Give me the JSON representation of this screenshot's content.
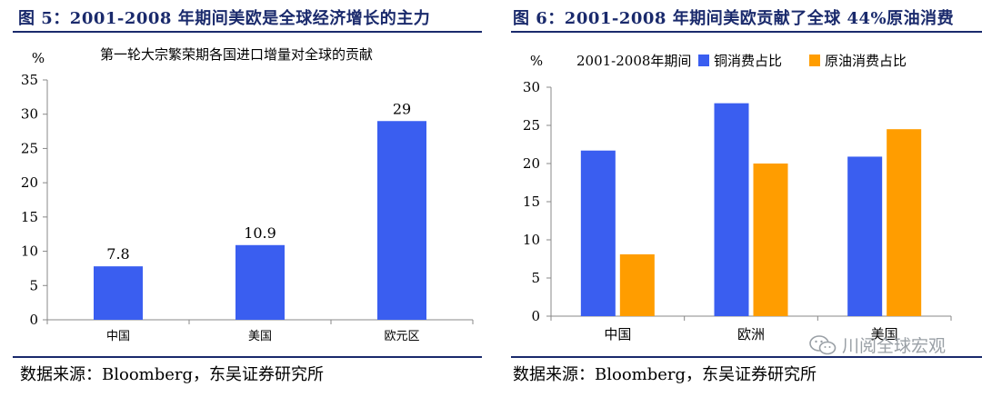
{
  "left_panel": {
    "title": "图 5：2001-2008 年期间美欧是全球经济增长的主力",
    "source": "数据来源：Bloomberg，东吴证券研究所"
  },
  "right_panel": {
    "title": "图 6：2001-2008 年期间美欧贡献了全球 44%原油消费",
    "source": "数据来源：Bloomberg，东吴证券研究所"
  },
  "watermark": "川阅全球宏观",
  "chart_data": [
    {
      "type": "bar",
      "title": "第一轮大宗繁荣期各国进口增量对全球的贡献",
      "ylabel": "%",
      "categories": [
        "中国",
        "美国",
        "欧元区"
      ],
      "values": [
        7.8,
        10.9,
        29
      ],
      "data_labels": [
        "7.8",
        "10.9",
        "29"
      ],
      "ylim": [
        0,
        35
      ],
      "yticks": [
        0,
        5,
        10,
        15,
        20,
        25,
        30,
        35
      ],
      "grid": false,
      "colors": {
        "bar": "#3a5ef0"
      }
    },
    {
      "type": "bar",
      "title": "2001-2008年期间",
      "ylabel": "%",
      "categories": [
        "中国",
        "欧洲",
        "美国"
      ],
      "series": [
        {
          "name": "铜消费占比",
          "values": [
            21.7,
            27.9,
            20.9
          ],
          "color": "#3a5ef0"
        },
        {
          "name": "原油消费占比",
          "values": [
            8.1,
            20.0,
            24.5
          ],
          "color": "#ff9d00"
        }
      ],
      "ylim": [
        0,
        30
      ],
      "yticks": [
        0,
        5,
        10,
        15,
        20,
        25,
        30
      ],
      "grid": false,
      "legend": "top"
    }
  ]
}
